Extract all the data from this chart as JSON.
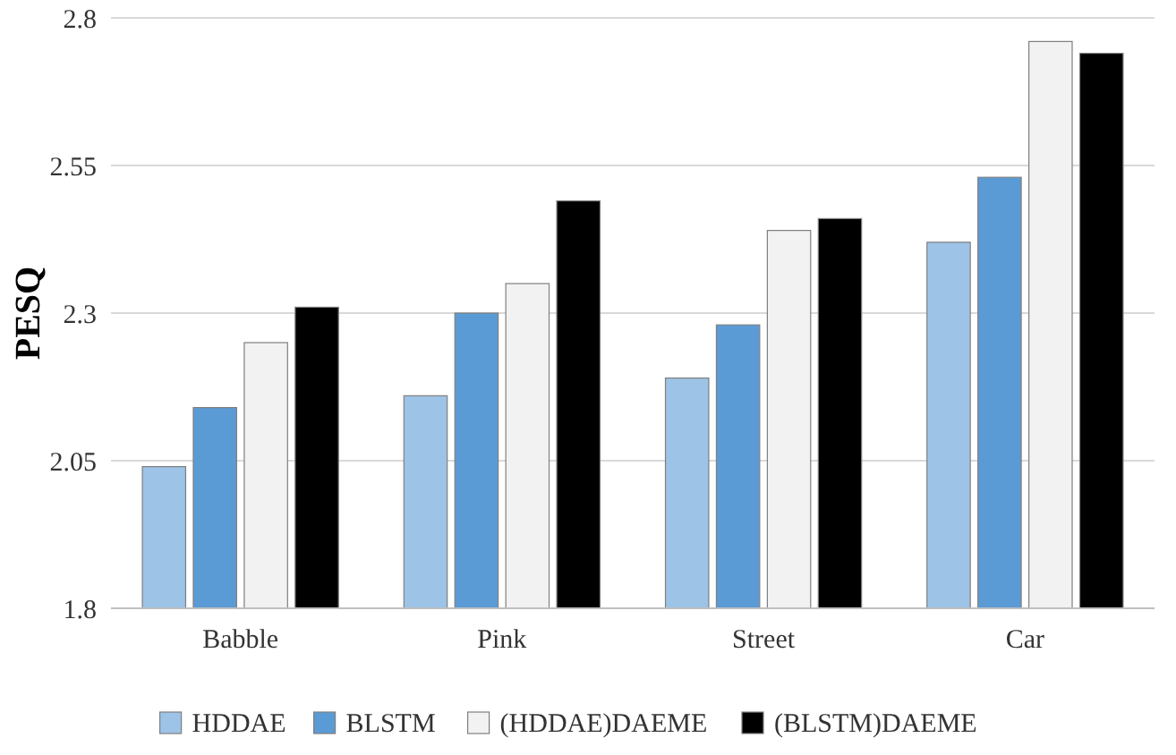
{
  "chart_data": {
    "type": "bar",
    "ylabel": "PESQ",
    "categories": [
      "Babble",
      "Pink",
      "Street",
      "Car"
    ],
    "series": [
      {
        "name": "HDDAE",
        "color": "#9dc3e6",
        "values": [
          2.04,
          2.16,
          2.19,
          2.42
        ]
      },
      {
        "name": "BLSTM",
        "color": "#5b9bd5",
        "values": [
          2.14,
          2.3,
          2.28,
          2.53
        ]
      },
      {
        "name": "(HDDAE)DAEME",
        "color": "#f2f2f2",
        "values": [
          2.25,
          2.35,
          2.44,
          2.76
        ]
      },
      {
        "name": "(BLSTM)DAEME",
        "color": "#000000",
        "values": [
          2.31,
          2.49,
          2.46,
          2.74
        ]
      }
    ],
    "ylim": [
      1.8,
      2.8
    ],
    "yticks": [
      1.8,
      2.05,
      2.3,
      2.55,
      2.8
    ],
    "grid": "y",
    "legend": "bottom"
  }
}
